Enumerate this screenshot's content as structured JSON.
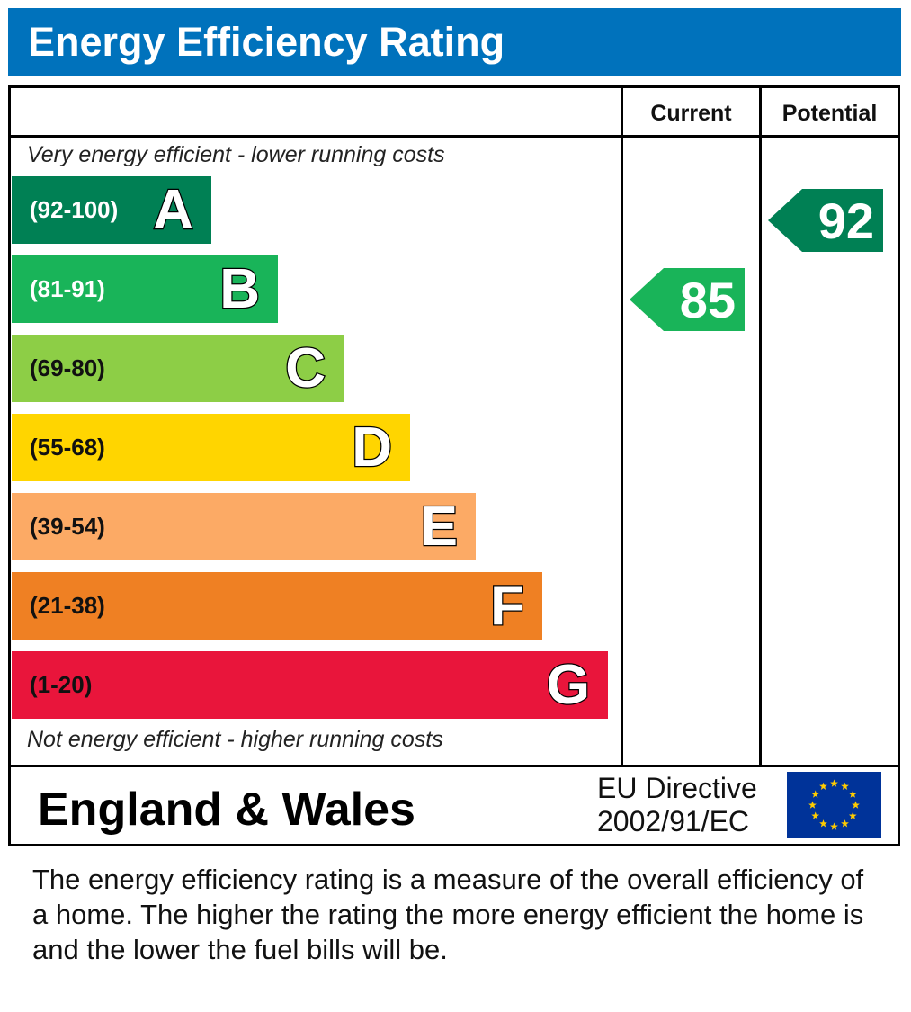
{
  "title": "Energy Efficiency Rating",
  "columns": {
    "current": "Current",
    "potential": "Potential"
  },
  "chart_data": {
    "type": "bar",
    "top_note": "Very energy efficient - lower running costs",
    "bottom_note": "Not energy efficient - higher running costs",
    "bands": [
      {
        "letter": "A",
        "range": "(92-100)",
        "color": "#008054",
        "text_color": "#ffffff"
      },
      {
        "letter": "B",
        "range": "(81-91)",
        "color": "#19b459",
        "text_color": "#ffffff"
      },
      {
        "letter": "C",
        "range": "(69-80)",
        "color": "#8dce46",
        "text_color": "#111111"
      },
      {
        "letter": "D",
        "range": "(55-68)",
        "color": "#ffd500",
        "text_color": "#111111"
      },
      {
        "letter": "E",
        "range": "(39-54)",
        "color": "#fcaa65",
        "text_color": "#111111"
      },
      {
        "letter": "F",
        "range": "(21-38)",
        "color": "#ef8023",
        "text_color": "#111111"
      },
      {
        "letter": "G",
        "range": "(1-20)",
        "color": "#e9153b",
        "text_color": "#111111"
      }
    ],
    "current": {
      "value": "85",
      "band": "B",
      "color": "#19b459"
    },
    "potential": {
      "value": "92",
      "band": "A",
      "color": "#008054"
    }
  },
  "footer": {
    "region": "England & Wales",
    "directive_line1": "EU Directive",
    "directive_line2": "2002/91/EC",
    "flag_icon": "eu-flag-icon"
  },
  "description": "The energy efficiency rating is a measure of the overall efficiency of a home.  The higher the rating the more energy efficient the home is and the lower the fuel bills will be."
}
